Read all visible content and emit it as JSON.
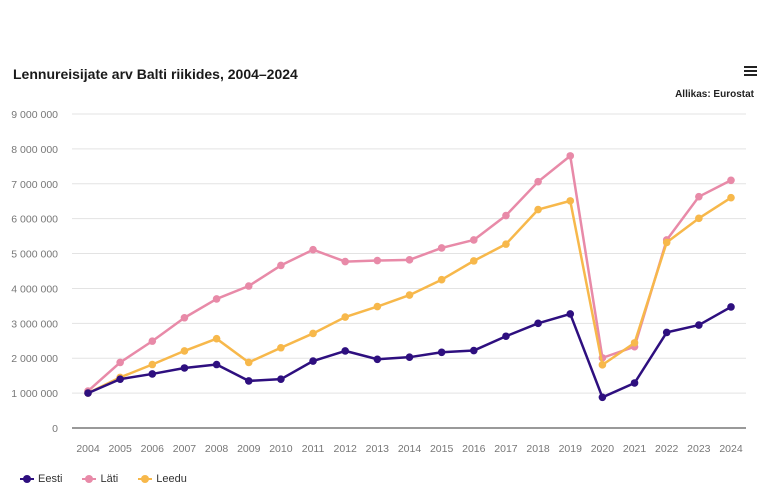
{
  "header": {
    "title": "Lennureisijate arv Balti riikides, 2004–2024",
    "source": "Allikas: Eurostat",
    "menu_icon": "hamburger-menu-icon"
  },
  "chart_data": {
    "type": "line",
    "title": "Lennureisijate arv Balti riikides, 2004–2024",
    "xlabel": "",
    "ylabel": "",
    "x": [
      "2004",
      "2005",
      "2006",
      "2007",
      "2008",
      "2009",
      "2010",
      "2011",
      "2012",
      "2013",
      "2014",
      "2015",
      "2016",
      "2017",
      "2018",
      "2019",
      "2020",
      "2021",
      "2022",
      "2023",
      "2024"
    ],
    "yticks": [
      "0",
      "1 000 000",
      "2 000 000",
      "3 000 000",
      "4 000 000",
      "5 000 000",
      "6 000 000",
      "7 000 000",
      "8 000 000",
      "9 000 000"
    ],
    "ylim": [
      0,
      9000000
    ],
    "grid": true,
    "legend_position": "bottom-left",
    "series": [
      {
        "name": "Eesti",
        "color": "#2e0f7f",
        "values": [
          1000000,
          1400000,
          1550000,
          1720000,
          1820000,
          1350000,
          1400000,
          1920000,
          2210000,
          1970000,
          2030000,
          2170000,
          2220000,
          2630000,
          3000000,
          3270000,
          880000,
          1290000,
          2740000,
          2950000,
          3470000
        ]
      },
      {
        "name": "Läti",
        "color": "#e88aa8",
        "values": [
          1060000,
          1880000,
          2490000,
          3160000,
          3700000,
          4070000,
          4660000,
          5110000,
          4770000,
          4800000,
          4820000,
          5160000,
          5390000,
          6090000,
          7060000,
          7800000,
          2010000,
          2330000,
          5390000,
          6630000,
          7100000
        ]
      },
      {
        "name": "Leedu",
        "color": "#f7b84b",
        "values": [
          1000000,
          1450000,
          1820000,
          2210000,
          2560000,
          1880000,
          2300000,
          2710000,
          3180000,
          3480000,
          3810000,
          4250000,
          4790000,
          5270000,
          6260000,
          6510000,
          1810000,
          2440000,
          5320000,
          6010000,
          6600000
        ]
      }
    ]
  }
}
